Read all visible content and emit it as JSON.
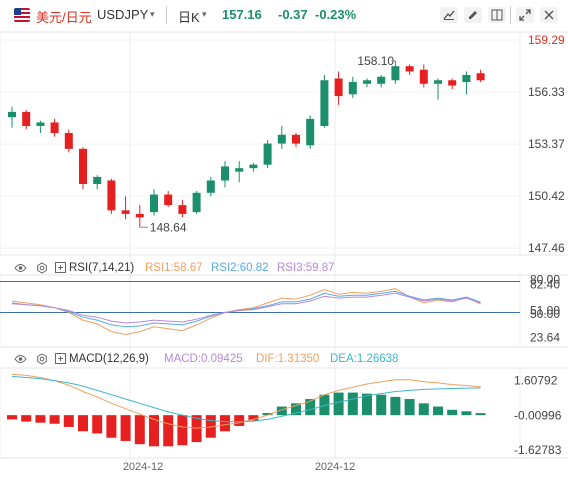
{
  "header": {
    "pair_cn": "美元/日元",
    "symbol": "USDJPY",
    "caret": "▾",
    "period": "日K",
    "period_caret": "▾",
    "last": "157.16",
    "change": "-0.37",
    "change_pct": "-0.23%",
    "icons": [
      "chart-draw-icon",
      "pen-icon",
      "layout-icon",
      "expand-icon",
      "close-icon"
    ]
  },
  "colors": {
    "up": "#1b8f6b",
    "down": "#e62020",
    "rsi1": "#f0a060",
    "rsi2": "#5aa9e6",
    "rsi3": "#b48ad8",
    "dif": "#f0a060",
    "dea": "#3fb6c8",
    "axis_red": "#e0301e"
  },
  "price_axis": {
    "ticks": [
      "159.29",
      "156.33",
      "153.37",
      "150.42",
      "147.46"
    ],
    "ylim": [
      147.46,
      159.29
    ],
    "first_tick_red": true
  },
  "rsi": {
    "label": "RSI(7,14,21)",
    "rsi1": "RSI1:58.67",
    "rsi2": "RSI2:60.82",
    "rsi3": "RSI3:59.87",
    "ticks": [
      "80.00",
      "82.40",
      "51.00",
      "50.00",
      "23.64"
    ]
  },
  "macd": {
    "label": "MACD(12,26,9)",
    "macd_val": "MACD:0.09425",
    "dif_val": "DIF:1.31350",
    "dea_val": "DEA:1.26638",
    "ticks": [
      "1.60792",
      "-0.00996",
      "-1.62783"
    ]
  },
  "x_labels": [
    "2024-12",
    "2024-12"
  ],
  "chart_data": {
    "type": "candlestick",
    "annotations": [
      {
        "label": "158.10",
        "kind": "high"
      },
      {
        "label": "148.64",
        "kind": "low"
      }
    ],
    "candles": [
      {
        "o": 154.9,
        "h": 155.5,
        "l": 154.3,
        "c": 155.2
      },
      {
        "o": 155.2,
        "h": 155.3,
        "l": 154.2,
        "c": 154.4
      },
      {
        "o": 154.4,
        "h": 154.7,
        "l": 154.0,
        "c": 154.6
      },
      {
        "o": 154.6,
        "h": 154.8,
        "l": 153.8,
        "c": 154.0
      },
      {
        "o": 154.0,
        "h": 154.2,
        "l": 152.9,
        "c": 153.1
      },
      {
        "o": 153.1,
        "h": 153.2,
        "l": 150.8,
        "c": 151.1
      },
      {
        "o": 151.1,
        "h": 151.6,
        "l": 150.8,
        "c": 151.5
      },
      {
        "o": 151.3,
        "h": 151.4,
        "l": 149.4,
        "c": 149.6
      },
      {
        "o": 149.6,
        "h": 150.4,
        "l": 149.1,
        "c": 149.4
      },
      {
        "o": 149.4,
        "h": 149.9,
        "l": 148.64,
        "c": 149.2
      },
      {
        "o": 149.5,
        "h": 150.8,
        "l": 149.3,
        "c": 150.5
      },
      {
        "o": 150.5,
        "h": 150.7,
        "l": 149.8,
        "c": 149.9
      },
      {
        "o": 149.9,
        "h": 150.2,
        "l": 149.2,
        "c": 149.4
      },
      {
        "o": 149.5,
        "h": 150.7,
        "l": 149.4,
        "c": 150.6
      },
      {
        "o": 150.6,
        "h": 151.5,
        "l": 150.4,
        "c": 151.3
      },
      {
        "o": 151.3,
        "h": 152.4,
        "l": 150.9,
        "c": 152.1
      },
      {
        "o": 151.8,
        "h": 152.4,
        "l": 151.2,
        "c": 152.0
      },
      {
        "o": 152.0,
        "h": 152.3,
        "l": 151.8,
        "c": 152.2
      },
      {
        "o": 152.2,
        "h": 153.6,
        "l": 152.0,
        "c": 153.4
      },
      {
        "o": 153.4,
        "h": 154.4,
        "l": 153.1,
        "c": 153.9
      },
      {
        "o": 153.9,
        "h": 154.0,
        "l": 153.2,
        "c": 153.4
      },
      {
        "o": 153.3,
        "h": 155.0,
        "l": 153.1,
        "c": 154.8
      },
      {
        "o": 154.4,
        "h": 157.3,
        "l": 154.3,
        "c": 157.0
      },
      {
        "o": 157.1,
        "h": 157.5,
        "l": 155.6,
        "c": 156.1
      },
      {
        "o": 156.2,
        "h": 157.2,
        "l": 156.0,
        "c": 156.9
      },
      {
        "o": 156.8,
        "h": 157.1,
        "l": 156.6,
        "c": 157.0
      },
      {
        "o": 156.8,
        "h": 157.3,
        "l": 156.6,
        "c": 157.2
      },
      {
        "o": 157.0,
        "h": 158.1,
        "l": 156.8,
        "c": 157.8
      },
      {
        "o": 157.8,
        "h": 157.9,
        "l": 157.3,
        "c": 157.5
      },
      {
        "o": 157.6,
        "h": 157.9,
        "l": 156.6,
        "c": 156.8
      },
      {
        "o": 156.8,
        "h": 157.1,
        "l": 155.9,
        "c": 157.0
      },
      {
        "o": 157.0,
        "h": 157.1,
        "l": 156.5,
        "c": 156.7
      },
      {
        "o": 156.9,
        "h": 157.5,
        "l": 156.2,
        "c": 157.3
      },
      {
        "o": 157.4,
        "h": 157.6,
        "l": 156.9,
        "c": 157.0
      }
    ],
    "rsi_ylim": [
      16,
      86
    ],
    "rsi_ref_lines": [
      82.4,
      51.0,
      50.0
    ],
    "rsi_series": [
      {
        "name": "RSI1",
        "values": [
          62,
          60,
          58,
          55,
          50,
          42,
          38,
          30,
          27,
          30,
          35,
          33,
          31,
          37,
          44,
          50,
          53,
          55,
          60,
          65,
          64,
          68,
          74,
          69,
          71,
          70,
          72,
          75,
          66,
          60,
          63,
          61,
          66,
          58.67
        ]
      },
      {
        "name": "RSI2",
        "values": [
          60,
          58,
          57,
          55,
          51,
          45,
          42,
          37,
          35,
          36,
          39,
          38,
          37,
          41,
          46,
          50,
          52,
          54,
          57,
          61,
          61,
          64,
          70,
          67,
          68,
          68,
          70,
          72,
          67,
          63,
          65,
          63,
          66,
          60.82
        ]
      },
      {
        "name": "RSI3",
        "values": [
          59,
          58,
          57,
          55,
          52,
          47,
          45,
          41,
          39,
          40,
          42,
          41,
          40,
          43,
          47,
          50,
          52,
          53,
          56,
          59,
          59,
          62,
          67,
          65,
          66,
          66,
          68,
          70,
          66,
          62,
          64,
          62,
          65,
          59.87
        ]
      }
    ],
    "macd_ylim": [
      -1.9,
      2.1
    ],
    "macd_hist": [
      -0.2,
      -0.3,
      -0.35,
      -0.4,
      -0.55,
      -0.75,
      -0.85,
      -1.05,
      -1.2,
      -1.35,
      -1.45,
      -1.45,
      -1.4,
      -1.25,
      -1.05,
      -0.75,
      -0.5,
      -0.25,
      0.1,
      0.4,
      0.55,
      0.75,
      0.95,
      1.05,
      1.05,
      1.0,
      0.95,
      0.85,
      0.75,
      0.55,
      0.4,
      0.25,
      0.18,
      0.09425
    ],
    "dif": [
      1.9,
      1.85,
      1.75,
      1.6,
      1.4,
      1.1,
      0.85,
      0.55,
      0.3,
      0.05,
      -0.2,
      -0.4,
      -0.55,
      -0.6,
      -0.55,
      -0.45,
      -0.35,
      -0.2,
      0.0,
      0.25,
      0.45,
      0.65,
      0.95,
      1.15,
      1.3,
      1.45,
      1.55,
      1.65,
      1.65,
      1.55,
      1.5,
      1.42,
      1.38,
      1.3135
    ],
    "dea": [
      1.8,
      1.75,
      1.7,
      1.6,
      1.5,
      1.35,
      1.15,
      0.95,
      0.75,
      0.55,
      0.35,
      0.15,
      0.0,
      -0.15,
      -0.25,
      -0.3,
      -0.3,
      -0.28,
      -0.2,
      -0.05,
      0.1,
      0.25,
      0.45,
      0.6,
      0.75,
      0.9,
      1.0,
      1.1,
      1.15,
      1.2,
      1.22,
      1.24,
      1.26,
      1.26638
    ]
  }
}
